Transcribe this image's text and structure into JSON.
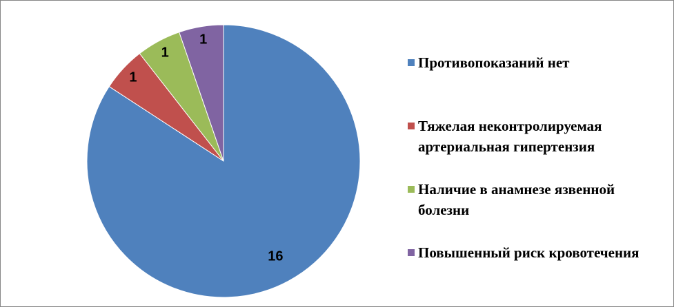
{
  "chart_data": {
    "type": "pie",
    "categories": [
      "Противопоказаний нет",
      "Тяжелая неконтролируемая артериальная гипертензия",
      "Наличие в анамнезе язвенной болезни",
      "Повышенный риск кровотечения"
    ],
    "values": [
      16,
      1,
      1,
      1
    ],
    "colors": [
      "#4f81bd",
      "#c0504d",
      "#9bbb59",
      "#8064a2"
    ],
    "legend": "right"
  }
}
